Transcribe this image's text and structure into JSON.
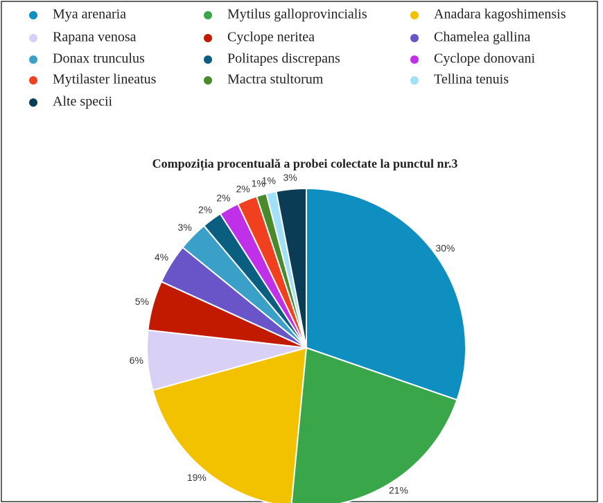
{
  "chart_data": {
    "type": "pie",
    "title": "Compoziția procentuală a probei colectate la punctul nr.3",
    "categories": [
      "Mya arenaria",
      "Mytilus galloprovincialis",
      "Anadara kagoshimensis",
      "Rapana venosa",
      "Cyclope neritea",
      "Chamelea gallina",
      "Donax trunculus",
      "Politapes discrepans",
      "Cyclope donovani",
      "Mytilaster lineatus",
      "Mactra stultorum",
      "Tellina tenuis",
      "Alte specii"
    ],
    "values": [
      30,
      21,
      19,
      6,
      5,
      4,
      3,
      2,
      2,
      2,
      1,
      1,
      3
    ],
    "value_labels": [
      "30%",
      "21%",
      "19%",
      "6%",
      "5%",
      "4%",
      "3%",
      "2%",
      "2%",
      "2%",
      "1%",
      "1%",
      "3%"
    ],
    "colors": [
      "#0f8fc0",
      "#3aa64a",
      "#f2c200",
      "#d9d0f5",
      "#c21a00",
      "#6a55c8",
      "#3aa0c8",
      "#0a5f80",
      "#c030e8",
      "#f04020",
      "#4a8a2a",
      "#a0e0f8",
      "#0a3d55"
    ],
    "legend": "top"
  }
}
